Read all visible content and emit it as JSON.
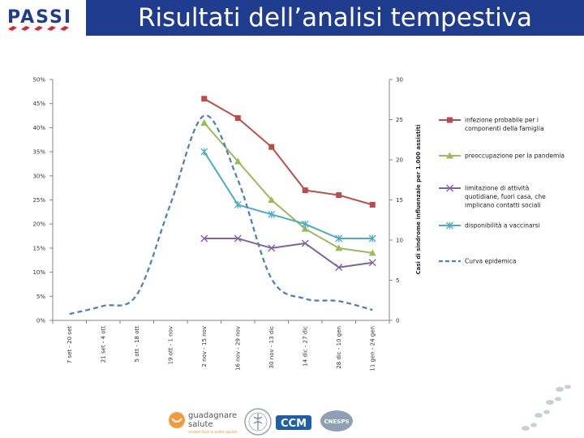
{
  "header": {
    "title": "Risultati dell’analisi tempestiva",
    "logo_text": "PASSI"
  },
  "footer": {
    "logo1_line1": "guadagnare",
    "logo1_line2": "salute",
    "logo3_text": "CCM",
    "logo4_text": "CNESPS"
  },
  "chart_data": {
    "type": "line",
    "categories": [
      "7 set - 20 set",
      "21 set - 4 ott",
      "5 ott - 18 ott",
      "19 ott - 1 nov",
      "2 nov - 15 nov",
      "16 nov - 29 nov",
      "30 nov - 13 dic",
      "14 dic - 27 dic",
      "28 dic - 10 gen",
      "11 gen - 24 gen"
    ],
    "left_axis": {
      "ticks": [
        "0%",
        "5%",
        "10%",
        "15%",
        "20%",
        "25%",
        "30%",
        "35%",
        "40%",
        "45%",
        "50%"
      ],
      "ylim": [
        0,
        50
      ]
    },
    "right_axis": {
      "label": "Casi di sindrome influenzale per 1.000 assistiti",
      "ticks": [
        "0",
        "5",
        "10",
        "15",
        "20",
        "25",
        "30"
      ],
      "ylim": [
        0,
        30
      ]
    },
    "series": [
      {
        "name": "infezione probabile per i componenti della famiglia",
        "axis": "left",
        "color": "#be4b48",
        "marker": "square",
        "values": [
          null,
          null,
          null,
          null,
          46,
          42,
          36,
          27,
          26,
          24
        ]
      },
      {
        "name": "preoccupazione per la pandemia",
        "axis": "left",
        "color": "#9bbb59",
        "marker": "triangle",
        "values": [
          null,
          null,
          null,
          null,
          41,
          33,
          25,
          19,
          15,
          14
        ]
      },
      {
        "name": "limitazione di attività quotidiane, fuori casa, che implicano contatti sociali",
        "axis": "left",
        "color": "#8064a2",
        "marker": "x",
        "values": [
          null,
          null,
          null,
          null,
          17,
          17,
          15,
          16,
          11,
          12
        ]
      },
      {
        "name": "disponibilità a vaccinarsi",
        "axis": "left",
        "color": "#4bacc6",
        "marker": "star",
        "values": [
          null,
          null,
          null,
          null,
          35,
          24,
          22,
          20,
          17,
          17
        ]
      },
      {
        "name": "Curva epidemica",
        "axis": "right",
        "color": "#4f81bd",
        "dashed": true,
        "values": [
          0.8,
          1.8,
          3.2,
          14.5,
          25.5,
          17.5,
          5.2,
          2.7,
          2.4,
          1.3
        ]
      }
    ]
  }
}
